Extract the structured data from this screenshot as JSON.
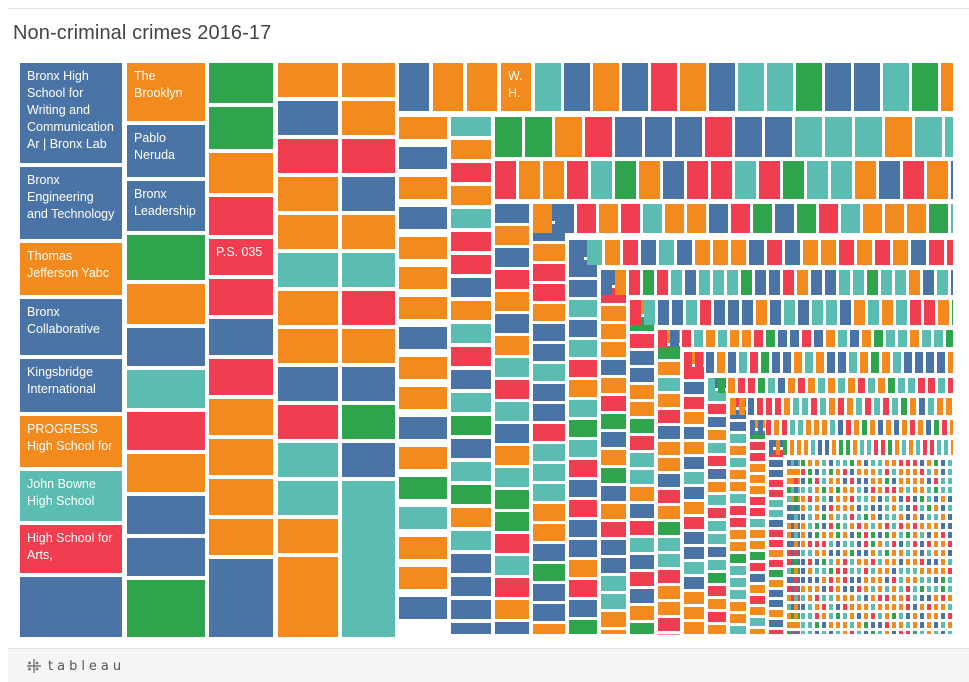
{
  "title": "Non-criminal crimes 2016-17",
  "footer": {
    "brand_text": "tableau",
    "brand_icon": "tableau-logo-icon"
  },
  "palette": {
    "blue": "#4a74a6",
    "orange": "#f28a1d",
    "green": "#2ea44c",
    "red": "#f03e50",
    "teal": "#5bbdb2"
  },
  "chart_data": {
    "type": "treemap",
    "title": "Non-criminal crimes 2016-17",
    "labeled_tiles": [
      {
        "label": "Bronx High School for Writing and Communication Ar | Bronx Lab",
        "color": "blue"
      },
      {
        "label": "Bronx Engineering and Technology",
        "color": "blue"
      },
      {
        "label": "Thomas Jefferson Yabc",
        "color": "orange"
      },
      {
        "label": "Bronx Collaborative",
        "color": "blue"
      },
      {
        "label": "Kingsbridge International",
        "color": "blue"
      },
      {
        "label": "PROGRESS High School for",
        "color": "orange"
      },
      {
        "label": "John Bowne High School",
        "color": "teal"
      },
      {
        "label": "High School for Arts,",
        "color": "red"
      },
      {
        "label": "The Brooklyn",
        "color": "orange"
      },
      {
        "label": "Pablo Neruda",
        "color": "blue"
      },
      {
        "label": "Bronx Leadership",
        "color": "blue"
      },
      {
        "label": "P.S. 035",
        "color": "red"
      },
      {
        "label": "W. H.",
        "color": "orange"
      }
    ],
    "column_colors": [
      [
        "blue",
        "blue",
        "orange",
        "blue",
        "blue",
        "orange",
        "teal",
        "red",
        "blue"
      ],
      [
        "orange",
        "blue",
        "blue",
        "green",
        "orange",
        "blue",
        "teal",
        "red",
        "orange",
        "blue",
        "blue",
        "green"
      ],
      [
        "green",
        "green",
        "orange",
        "red",
        "green",
        "red",
        "blue",
        "red",
        "orange",
        "orange",
        "orange",
        "orange",
        "blue"
      ],
      [
        "orange",
        "blue",
        "red",
        "orange",
        "orange",
        "teal",
        "orange",
        "orange",
        "blue",
        "red",
        "teal",
        "teal",
        "orange",
        "orange"
      ],
      [
        "orange",
        "orange",
        "red",
        "blue",
        "orange",
        "teal",
        "red",
        "orange",
        "blue",
        "green",
        "blue",
        "teal"
      ]
    ]
  }
}
